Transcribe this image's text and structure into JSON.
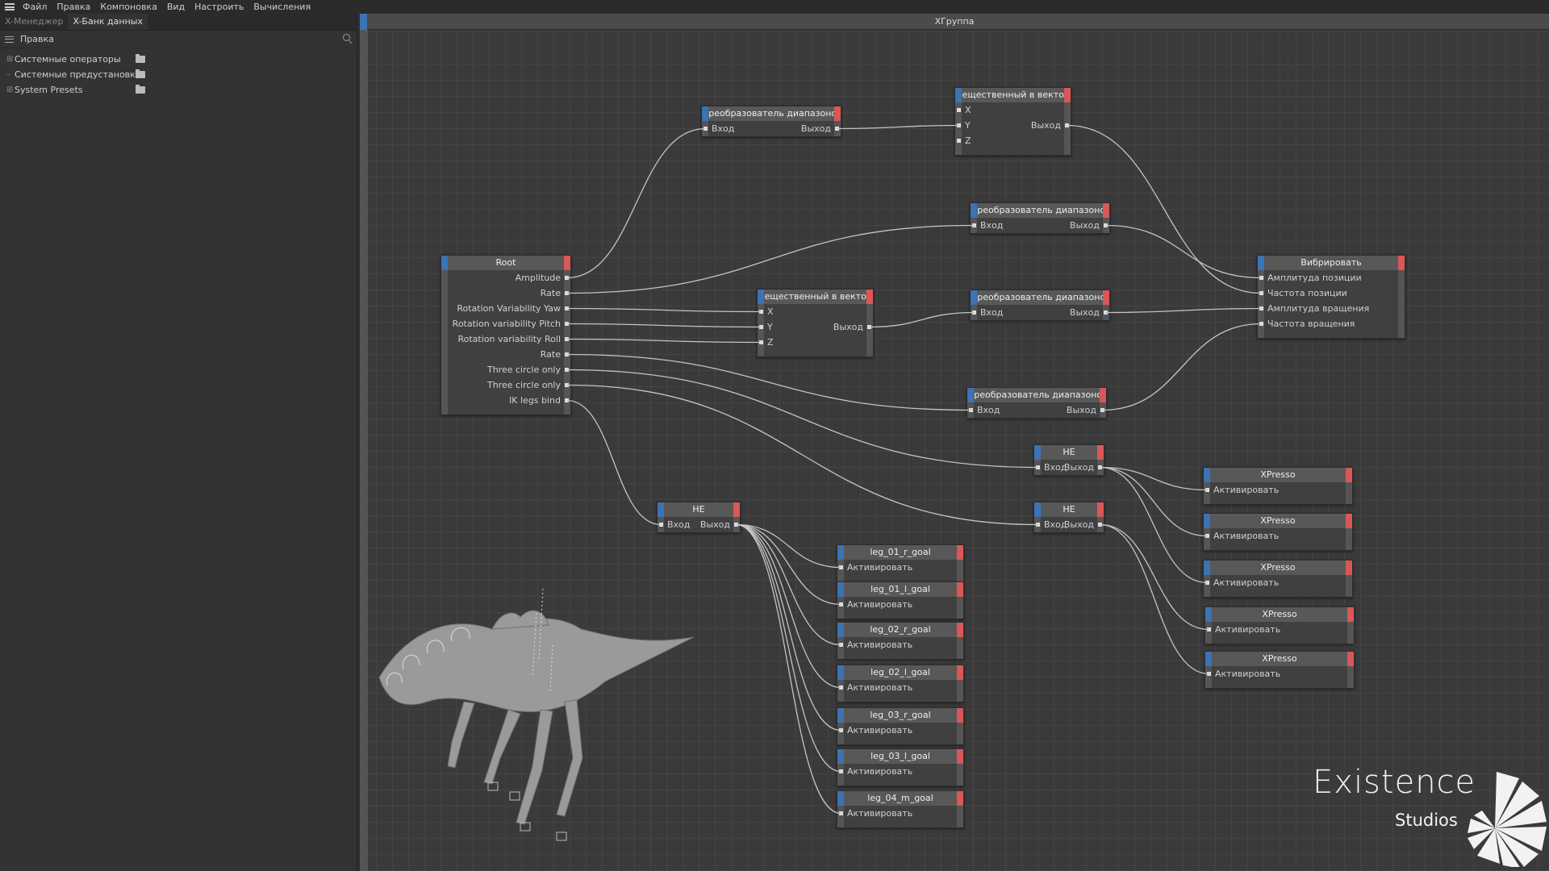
{
  "menu": [
    "Файл",
    "Правка",
    "Компоновка",
    "Вид",
    "Настроить",
    "Вычисления"
  ],
  "tabs": [
    {
      "label": "X-Менеджер",
      "active": false
    },
    {
      "label": "X-Банк данных",
      "active": true
    }
  ],
  "panel": {
    "edit_label": "Правка",
    "tree": [
      "Системные операторы",
      "Системные предустановки",
      "System Presets"
    ]
  },
  "graph": {
    "title": "XГруппа"
  },
  "nodes": [
    {
      "id": "root",
      "title": "Root",
      "inputs": [],
      "outputs": [
        "Amplitude",
        "Rate",
        "Rotation Variability Yaw",
        "Rotation variability Pitch",
        "Rotation variability Roll",
        "Rate",
        "Three circle only",
        "Three circle only",
        "IK legs bind"
      ]
    },
    {
      "id": "range1",
      "title": "Преобразователь диапазонов",
      "inline": true,
      "inputs": [
        "Вход"
      ],
      "outputs": [
        "Выход"
      ]
    },
    {
      "id": "vec1",
      "title": "Вещественный в вектор",
      "inputs": [
        "X",
        "Y",
        "Z"
      ],
      "outputs": [
        "Выход"
      ]
    },
    {
      "id": "range2",
      "title": "Преобразователь диапазонов",
      "inline": true,
      "inputs": [
        "Вход"
      ],
      "outputs": [
        "Выход"
      ]
    },
    {
      "id": "vec2",
      "title": "Вещественный в вектор",
      "inputs": [
        "X",
        "Y",
        "Z"
      ],
      "outputs": [
        "Выход"
      ]
    },
    {
      "id": "range3",
      "title": "Преобразователь диапазонов",
      "inline": true,
      "inputs": [
        "Вход"
      ],
      "outputs": [
        "Выход"
      ]
    },
    {
      "id": "range4",
      "title": "Преобразователь диапазонов",
      "inline": true,
      "inputs": [
        "Вход"
      ],
      "outputs": [
        "Выход"
      ]
    },
    {
      "id": "vibrate",
      "title": "Вибрировать",
      "inputs": [
        "Амплитуда позиции",
        "Частота позиции",
        "Амплитуда вращения",
        "Частота вращения"
      ],
      "outputs": []
    },
    {
      "id": "not1",
      "title": "НЕ",
      "inline": true,
      "inputs": [
        "Вход"
      ],
      "outputs": [
        "Выход"
      ]
    },
    {
      "id": "not2",
      "title": "НЕ",
      "inline": true,
      "inputs": [
        "Вход"
      ],
      "outputs": [
        "Выход"
      ]
    },
    {
      "id": "not3",
      "title": "НЕ",
      "inline": true,
      "inputs": [
        "Вход"
      ],
      "outputs": [
        "Выход"
      ]
    },
    {
      "id": "xp1",
      "title": "XPresso",
      "inputs": [
        "Активировать"
      ],
      "outputs": []
    },
    {
      "id": "xp2",
      "title": "XPresso",
      "inputs": [
        "Активировать"
      ],
      "outputs": []
    },
    {
      "id": "xp3",
      "title": "XPresso",
      "inputs": [
        "Активировать"
      ],
      "outputs": []
    },
    {
      "id": "xp4",
      "title": "XPresso",
      "inputs": [
        "Активировать"
      ],
      "outputs": []
    },
    {
      "id": "xp5",
      "title": "XPresso",
      "inputs": [
        "Активировать"
      ],
      "outputs": []
    },
    {
      "id": "leg1",
      "title": "leg_01_r_goal",
      "inputs": [
        "Активировать"
      ],
      "outputs": []
    },
    {
      "id": "leg2",
      "title": "leg_01_l_goal",
      "inputs": [
        "Активировать"
      ],
      "outputs": []
    },
    {
      "id": "leg3",
      "title": "leg_02_r_goal",
      "inputs": [
        "Активировать"
      ],
      "outputs": []
    },
    {
      "id": "leg4",
      "title": "leg_02_l_goal",
      "inputs": [
        "Активировать"
      ],
      "outputs": []
    },
    {
      "id": "leg5",
      "title": "leg_03_r_goal",
      "inputs": [
        "Активировать"
      ],
      "outputs": []
    },
    {
      "id": "leg6",
      "title": "leg_03_l_goal",
      "inputs": [
        "Активировать"
      ],
      "outputs": []
    },
    {
      "id": "leg7",
      "title": "leg_04_m_goal",
      "inputs": [
        "Активировать"
      ],
      "outputs": []
    }
  ],
  "connections": [
    [
      "root.0",
      "range1.0"
    ],
    [
      "root.1",
      "range2.0"
    ],
    [
      "root.2",
      "vec2.0"
    ],
    [
      "root.3",
      "vec2.1"
    ],
    [
      "root.4",
      "vec2.2"
    ],
    [
      "root.5",
      "range4.0"
    ],
    [
      "root.6",
      "not1.0"
    ],
    [
      "root.7",
      "not2.0"
    ],
    [
      "root.8",
      "not3.0"
    ],
    [
      "range1.0",
      "vec1.1"
    ],
    [
      "vec1.0",
      "vibrate.1"
    ],
    [
      "range2.0",
      "vibrate.0"
    ],
    [
      "vec2.0",
      "range3.0"
    ],
    [
      "range3.0",
      "vibrate.2"
    ],
    [
      "range4.0",
      "vibrate.3"
    ],
    [
      "not1.0",
      "xp1.0"
    ],
    [
      "not1.0",
      "xp2.0"
    ],
    [
      "not1.0",
      "xp3.0"
    ],
    [
      "not2.0",
      "xp4.0"
    ],
    [
      "not2.0",
      "xp5.0"
    ],
    [
      "not3.0",
      "leg1.0"
    ],
    [
      "not3.0",
      "leg2.0"
    ],
    [
      "not3.0",
      "leg3.0"
    ],
    [
      "not3.0",
      "leg4.0"
    ],
    [
      "not3.0",
      "leg5.0"
    ],
    [
      "not3.0",
      "leg6.0"
    ],
    [
      "not3.0",
      "leg7.0"
    ]
  ],
  "logo": {
    "line1": "Existence",
    "line2": "Studios"
  },
  "colors": {
    "accent_blue": "#3c73b4",
    "accent_red": "#d95757",
    "grid": "#3a3a3a"
  }
}
